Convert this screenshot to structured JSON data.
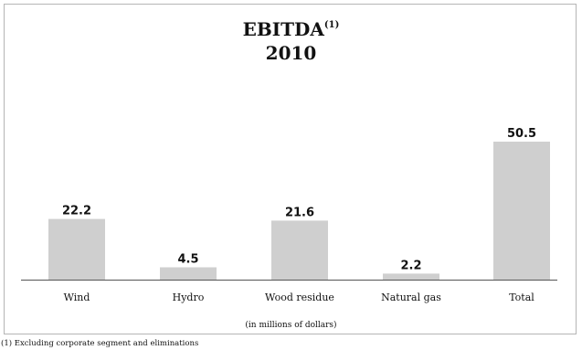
{
  "chart_data": {
    "type": "bar",
    "title": "EBITDA",
    "title_superscript": "(1)",
    "subtitle": "2010",
    "categories": [
      "Wind",
      "Hydro",
      "Wood residue",
      "Natural gas",
      "Total"
    ],
    "values": [
      22.2,
      4.5,
      21.6,
      2.2,
      50.5
    ],
    "data_labels": [
      "22.2",
      "4.5",
      "21.6",
      "2.2",
      "50.5"
    ],
    "unit_note": "(in millions of dollars)",
    "footnote": "(1) Excluding corporate segment and eliminations",
    "xlabel": "",
    "ylabel": "",
    "ylim": [
      0,
      50.5
    ],
    "grid": false,
    "legend": "none",
    "bar_color": "#cfcfcf",
    "axis_color": "#555555"
  }
}
